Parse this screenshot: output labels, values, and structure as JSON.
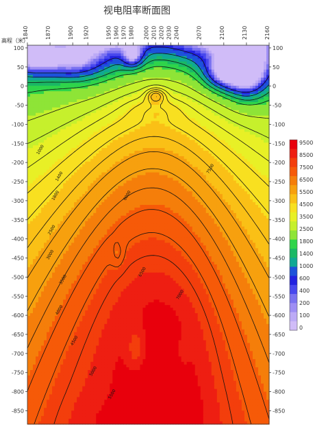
{
  "chart_data": {
    "type": "heatmap",
    "title": "视电阻率断面图",
    "ylabel": "高程（米）",
    "x_tick_labels": [
      "1840",
      "1870",
      "1900",
      "1920",
      "1950",
      "1960",
      "1970",
      "1980",
      "2000",
      "2010",
      "2020",
      "2030",
      "2040",
      "2070",
      "2100",
      "2130",
      "2160"
    ],
    "x_ticks": [
      1840,
      1870,
      1900,
      1920,
      1950,
      1960,
      1970,
      1980,
      2000,
      2010,
      2020,
      2030,
      2040,
      2070,
      2100,
      2130,
      2160
    ],
    "xlim": [
      1840,
      2160
    ],
    "y_ticks": [
      100,
      50,
      0,
      -50,
      -100,
      -150,
      -200,
      -250,
      -300,
      -350,
      -400,
      -450,
      -500,
      -550,
      -600,
      -650,
      -700,
      -750,
      -800,
      -850
    ],
    "ylim": [
      -885,
      107
    ],
    "colorbar": {
      "levels": [
        9500,
        8500,
        7500,
        6500,
        5500,
        4500,
        3500,
        2500,
        1800,
        1400,
        1000,
        600,
        400,
        200,
        100,
        0
      ],
      "colors": [
        "#e8000c",
        "#ee1e12",
        "#f33e0c",
        "#f65a08",
        "#f57e0a",
        "#f7a00e",
        "#fac016",
        "#f8e020",
        "#e8f026",
        "#c6f02c",
        "#8ee437",
        "#2fd44a",
        "#1ab865",
        "#10a894",
        "#1d52da",
        "#2222e0",
        "#4848ee",
        "#7a72f0",
        "#9e8ef4",
        "#bcaaf6",
        "#d0bcf8"
      ]
    },
    "contour_labels": [
      "1000",
      "1400",
      "1800",
      "2500",
      "3000",
      "3500",
      "4000",
      "4500",
      "5000",
      "5500",
      "6000",
      "6500",
      "7000",
      "7500"
    ]
  }
}
